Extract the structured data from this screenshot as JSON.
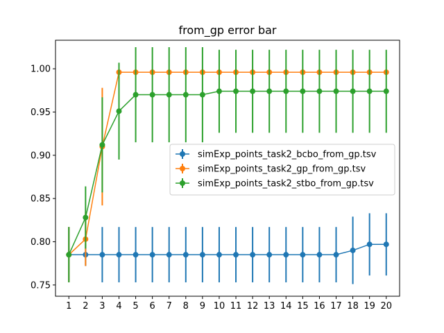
{
  "chart_data": {
    "type": "line",
    "title": "from_gp error bar",
    "xlabel": "",
    "ylabel": "",
    "x": [
      1,
      2,
      3,
      4,
      5,
      6,
      7,
      8,
      9,
      10,
      11,
      12,
      13,
      14,
      15,
      16,
      17,
      18,
      19,
      20
    ],
    "xlim": [
      0.2,
      20.8
    ],
    "ylim": [
      0.737,
      1.033
    ],
    "yticks": [
      0.75,
      0.8,
      0.85,
      0.9,
      0.95,
      1.0
    ],
    "ytick_labels": [
      "0.75",
      "0.80",
      "0.85",
      "0.90",
      "0.95",
      "1.00"
    ],
    "grid": false,
    "legend_position": "center-right",
    "series": [
      {
        "name": "simExp_points_task2_bcbo_from_gp.tsv",
        "color": "#1f77b4",
        "values": [
          0.785,
          0.785,
          0.785,
          0.785,
          0.785,
          0.785,
          0.785,
          0.785,
          0.785,
          0.785,
          0.785,
          0.785,
          0.785,
          0.785,
          0.785,
          0.785,
          0.785,
          0.79,
          0.797,
          0.797
        ],
        "errors": [
          0.032,
          0.013,
          0.032,
          0.032,
          0.032,
          0.032,
          0.032,
          0.032,
          0.032,
          0.032,
          0.032,
          0.032,
          0.032,
          0.032,
          0.032,
          0.032,
          0.032,
          0.039,
          0.036,
          0.036
        ]
      },
      {
        "name": "simExp_points_task2_gp_from_gp.tsv",
        "color": "#ff7f0e",
        "values": [
          0.785,
          0.803,
          0.91,
          0.996,
          0.996,
          0.996,
          0.996,
          0.996,
          0.996,
          0.996,
          0.996,
          0.996,
          0.996,
          0.996,
          0.996,
          0.996,
          0.996,
          0.996,
          0.996,
          0.996
        ],
        "errors": [
          0.032,
          0.031,
          0.068,
          0.0,
          0.0,
          0.0,
          0.0,
          0.0,
          0.0,
          0.0,
          0.0,
          0.0,
          0.0,
          0.0,
          0.0,
          0.0,
          0.0,
          0.0,
          0.0,
          0.0
        ]
      },
      {
        "name": "simExp_points_task2_stbo_from_gp.tsv",
        "color": "#2ca02c",
        "values": [
          0.785,
          0.828,
          0.912,
          0.951,
          0.97,
          0.97,
          0.97,
          0.97,
          0.97,
          0.974,
          0.974,
          0.974,
          0.974,
          0.974,
          0.974,
          0.974,
          0.974,
          0.974,
          0.974,
          0.974
        ],
        "errors": [
          0.032,
          0.036,
          0.055,
          0.056,
          0.055,
          0.055,
          0.055,
          0.055,
          0.055,
          0.048,
          0.048,
          0.048,
          0.048,
          0.048,
          0.048,
          0.048,
          0.048,
          0.048,
          0.048,
          0.048
        ]
      }
    ]
  }
}
